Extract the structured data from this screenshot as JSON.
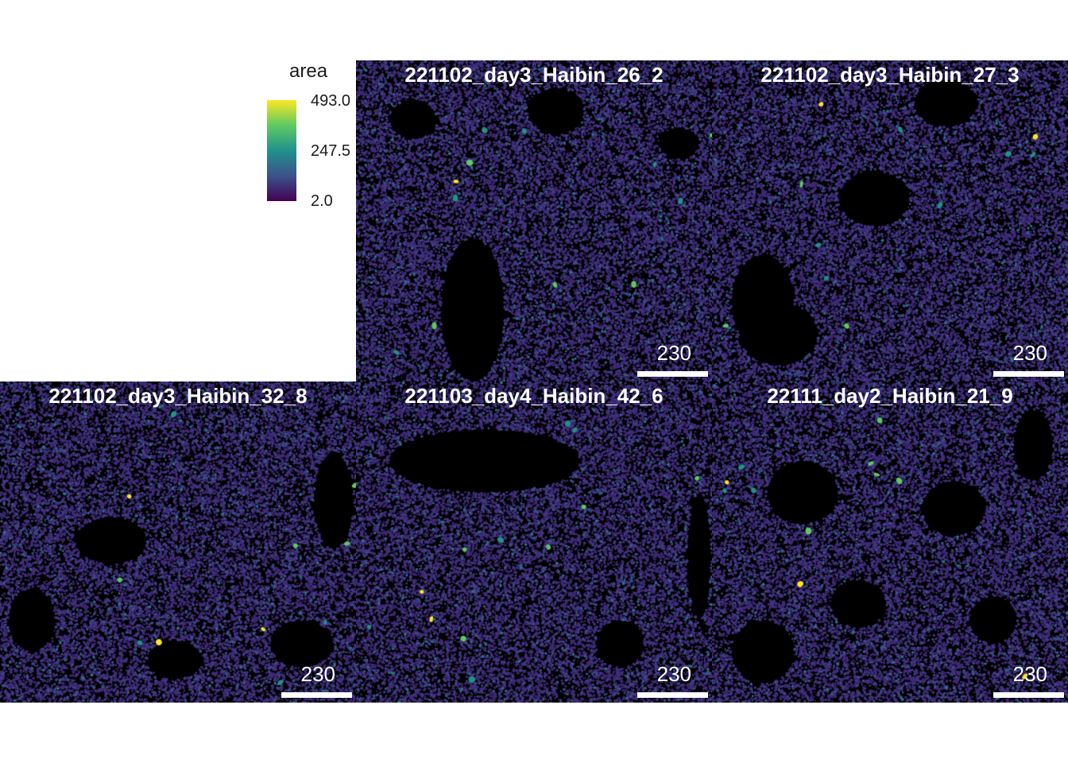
{
  "legend": {
    "title": "area",
    "ticks": [
      "493.0",
      "247.5",
      "2.0"
    ],
    "colors": [
      "#440154",
      "#3b528b",
      "#21918c",
      "#5ec962",
      "#fde725"
    ]
  },
  "panels": [
    {
      "title": "221102_day3_Haibin_26_2",
      "scale_label": "230"
    },
    {
      "title": "221102_day3_Haibin_27_3",
      "scale_label": "230"
    },
    {
      "title": "221102_day3_Haibin_32_8",
      "scale_label": "230"
    },
    {
      "title": "221103_day4_Haibin_42_6",
      "scale_label": "230"
    },
    {
      "title": "22111_day2_Haibin_21_9",
      "scale_label": "230"
    }
  ]
}
